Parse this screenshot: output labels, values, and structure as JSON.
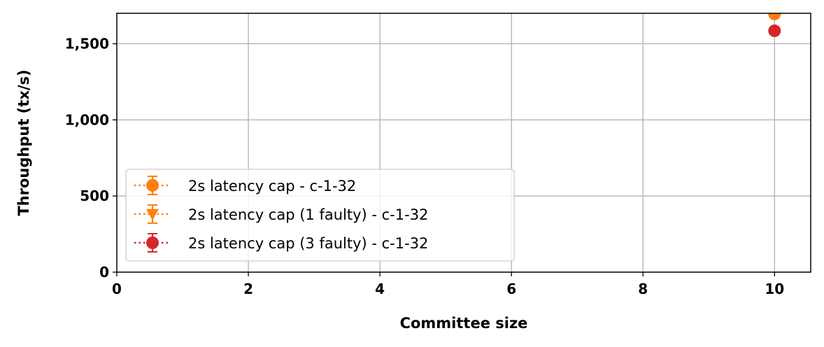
{
  "chart_data": {
    "type": "scatter",
    "xlabel": "Committee size",
    "ylabel": "Throughput (tx/s)",
    "xlim": [
      0,
      10.55
    ],
    "ylim": [
      0,
      1700
    ],
    "x_ticks": [
      0,
      2,
      4,
      6,
      8,
      10
    ],
    "x_tick_labels": [
      "0",
      "2",
      "4",
      "6",
      "8",
      "10"
    ],
    "y_ticks": [
      0,
      500,
      1000,
      1500
    ],
    "y_tick_labels": [
      "0",
      "500",
      "1,000",
      "1,500"
    ],
    "grid": true,
    "legend_position": "lower-left",
    "series": [
      {
        "name": "2s latency cap - c-1-32",
        "marker": "circle",
        "color": "#ff7f0e",
        "linestyle": "dotted",
        "x": [
          10
        ],
        "y": [
          1695
        ]
      },
      {
        "name": "2s latency cap (1 faulty) - c-1-32",
        "marker": "triangle-down",
        "color": "#ff7f0e",
        "linestyle": "dotted",
        "x": [],
        "y": []
      },
      {
        "name": "2s latency cap (3 faulty) - c-1-32",
        "marker": "circle",
        "color": "#d62728",
        "linestyle": "dotted",
        "x": [
          10
        ],
        "y": [
          1585
        ]
      }
    ]
  }
}
